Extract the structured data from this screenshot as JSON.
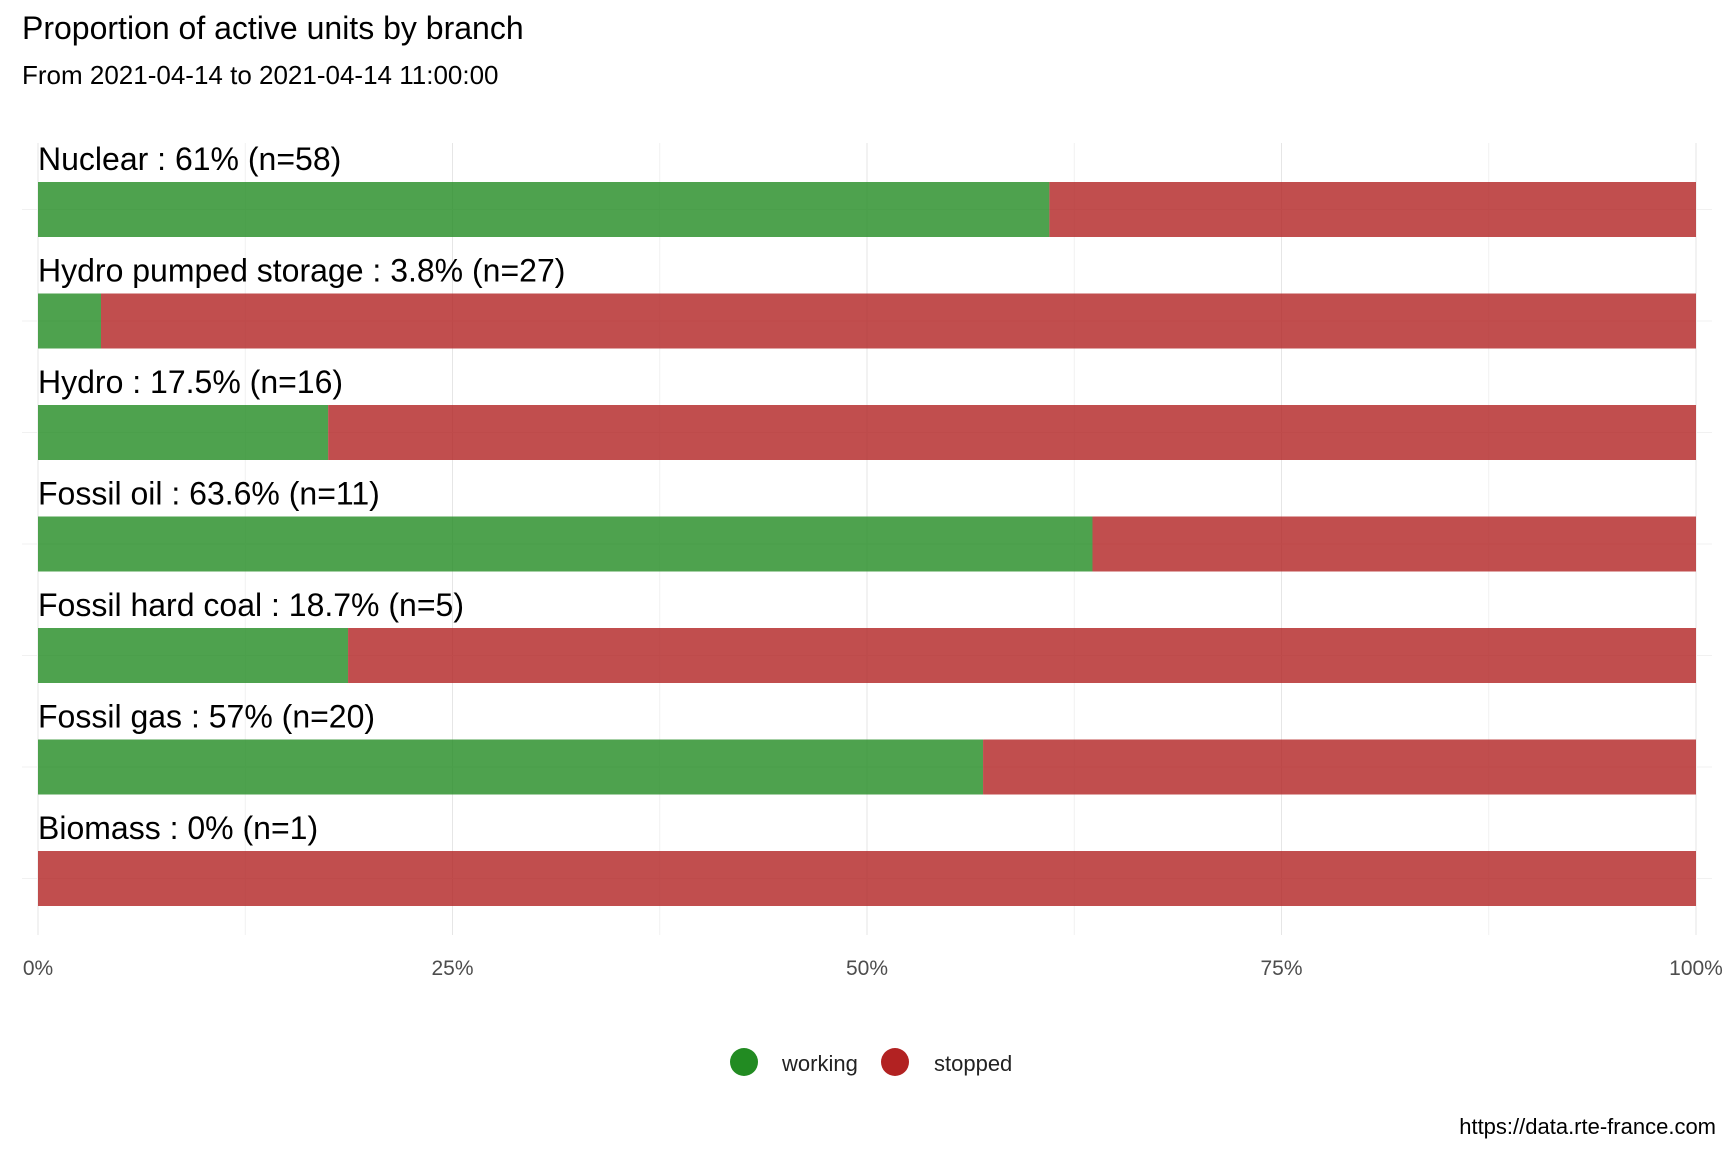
{
  "chart_data": {
    "type": "bar",
    "orientation": "horizontal",
    "stacked": true,
    "title": "Proportion of active units by branch",
    "subtitle": "From 2021-04-14 to 2021-04-14 11:00:00",
    "caption": "https://data.rte-france.com",
    "xlim": [
      0,
      1
    ],
    "x_ticks": [
      0,
      0.25,
      0.5,
      0.75,
      1
    ],
    "x_tick_labels": [
      "0%",
      "25%",
      "50%",
      "75%",
      "100%"
    ],
    "grid": true,
    "legend_position": "bottom",
    "categories": [
      "Nuclear : 61% (n=58)",
      "Hydro pumped storage : 3.8% (n=27)",
      "Hydro : 17.5% (n=16)",
      "Fossil oil : 63.6% (n=11)",
      "Fossil hard coal : 18.7% (n=5)",
      "Fossil gas : 57% (n=20)",
      "Biomass : 0% (n=1)"
    ],
    "series": [
      {
        "name": "working",
        "color": "#228B22",
        "values": [
          0.61,
          0.038,
          0.175,
          0.636,
          0.187,
          0.57,
          0.0
        ]
      },
      {
        "name": "stopped",
        "color": "#B22222",
        "values": [
          0.39,
          0.962,
          0.825,
          0.364,
          0.813,
          0.43,
          1.0
        ]
      }
    ]
  }
}
